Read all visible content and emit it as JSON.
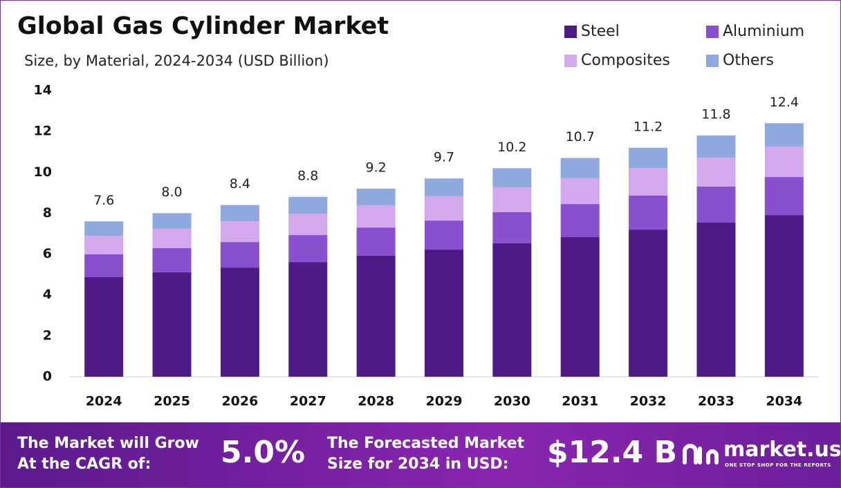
{
  "chart_data": {
    "type": "stacked_bar",
    "title": "Global Gas Cylinder Market",
    "subtitle": "Size, by Material, 2024-2034 (USD Billion)",
    "categories": [
      "2024",
      "2025",
      "2026",
      "2027",
      "2028",
      "2029",
      "2030",
      "2031",
      "2032",
      "2033",
      "2034"
    ],
    "series": [
      {
        "name": "Steel",
        "color": "#4e1a87",
        "values": [
          4.87,
          5.11,
          5.34,
          5.61,
          5.92,
          6.22,
          6.53,
          6.83,
          7.2,
          7.54,
          7.91
        ]
      },
      {
        "name": "Aluminium",
        "color": "#8a4fcf",
        "values": [
          1.12,
          1.18,
          1.25,
          1.32,
          1.38,
          1.42,
          1.52,
          1.62,
          1.66,
          1.76,
          1.86
        ]
      },
      {
        "name": "Composites",
        "color": "#d3a8ee",
        "values": [
          0.91,
          0.95,
          1.02,
          1.05,
          1.09,
          1.19,
          1.22,
          1.26,
          1.35,
          1.42,
          1.49
        ]
      },
      {
        "name": "Others",
        "color": "#8fa8de",
        "values": [
          0.7,
          0.76,
          0.79,
          0.82,
          0.81,
          0.87,
          0.93,
          0.99,
          0.99,
          1.08,
          1.14
        ]
      }
    ],
    "totals": {
      "values": [
        7.6,
        8,
        8.4,
        8.8,
        9.2,
        9.7,
        10.2,
        10.7,
        11.2,
        11.8,
        12.4
      ],
      "value_labels": [
        "7.6",
        "8.0",
        "8.4",
        "8.8",
        "9.2",
        "9.7",
        "10.2",
        "10.7",
        "11.2",
        "11.8",
        "12.4"
      ]
    },
    "ylim": [
      0,
      14
    ],
    "yticks": [
      0,
      2,
      4,
      6,
      8,
      10,
      12,
      14
    ],
    "grid": false,
    "legend": "top-right"
  },
  "footer": {
    "cagr_text": [
      "The Market will Grow",
      "At the CAGR of:"
    ],
    "cagr_value": "5.0%",
    "size_text": [
      "The Forecasted Market",
      "Size for 2034 in USD:"
    ],
    "size_value": "$12.4 B",
    "logo": "market.us",
    "tagline": "ONE STOP SHOP FOR THE REPORTS"
  }
}
